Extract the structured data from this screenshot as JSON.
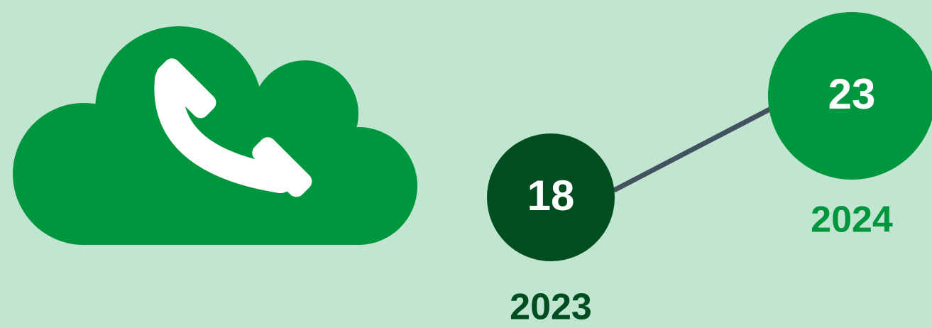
{
  "items": [
    {
      "value": 18,
      "year": "2023"
    },
    {
      "value": 23,
      "year": "2024"
    }
  ]
}
